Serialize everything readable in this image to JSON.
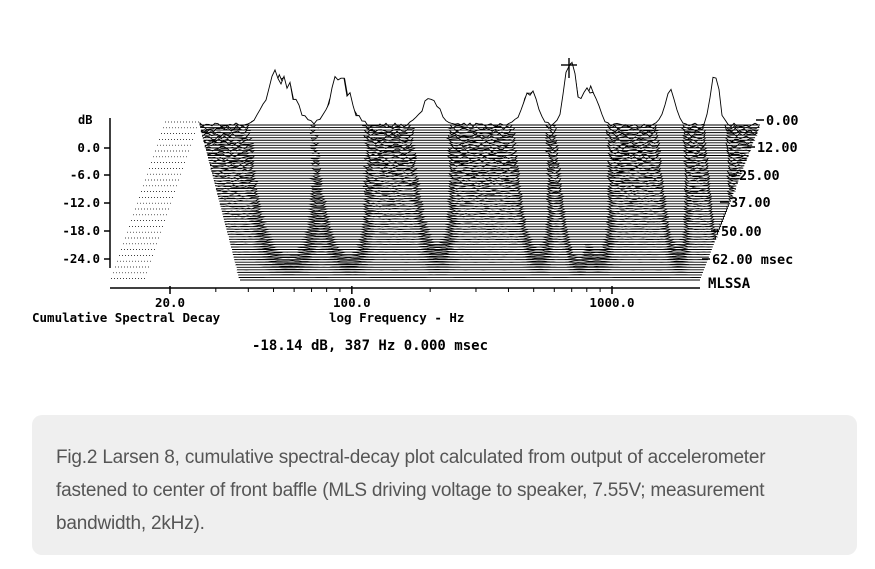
{
  "chart_data": {
    "type": "waterfall",
    "title": "Cumulative Spectral Decay",
    "x_axis": {
      "label": "log Frequency - Hz",
      "scale": "log",
      "tick_labels": [
        "20.0",
        "100.0",
        "1000.0"
      ]
    },
    "y_axis": {
      "label": "dB",
      "tick_labels": [
        "0.0",
        "-6.0",
        "-12.0",
        "-18.0",
        "-24.0"
      ]
    },
    "z_axis": {
      "unit": "msec",
      "tick_labels": [
        "0.00",
        "12.00",
        "25.00",
        "37.00",
        "50.00",
        "62.00 msec"
      ]
    },
    "instrument_label": "MLSSA",
    "cursor_readout": "-18.14 dB, 387 Hz  0.000 msec"
  },
  "caption": {
    "text": "Fig.2 Larsen 8, cumulative spectral-decay plot calculated from output of accelerometer fastened to center of front baffle (MLS driving voltage to speaker, 7.55V; measurement bandwidth, 2kHz)."
  },
  "colors": {
    "ink": "#000000",
    "caption_bg": "#efefef",
    "caption_text": "#555555"
  }
}
